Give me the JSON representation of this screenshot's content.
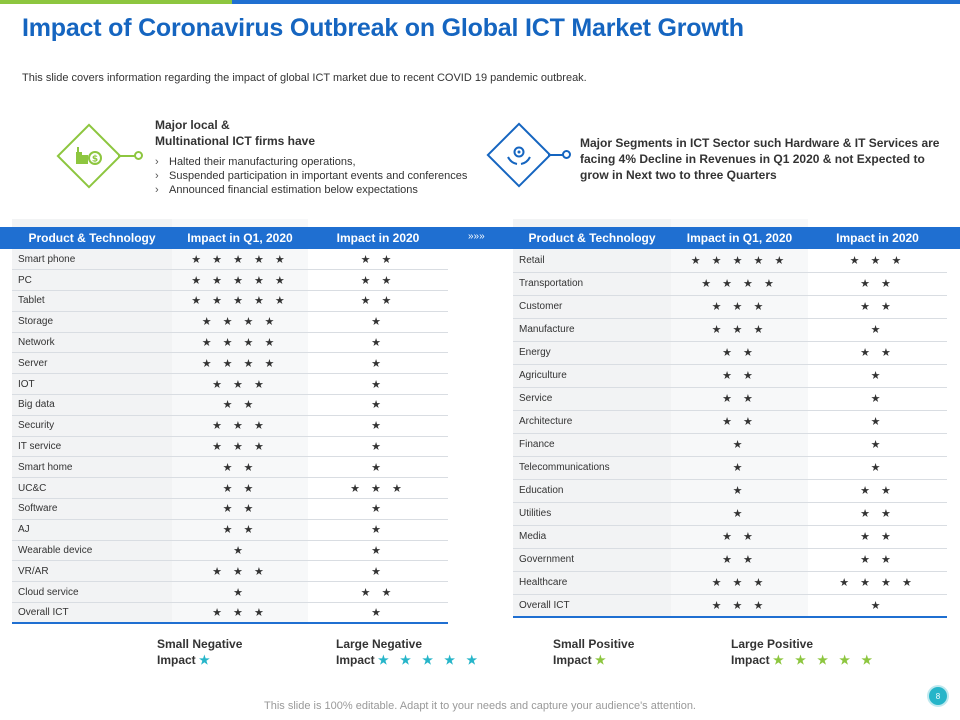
{
  "title": "Impact of Coronavirus Outbreak on Global ICT Market Growth",
  "subtitle": "This slide covers information regarding the impact of global ICT market due to recent COVID 19 pandemic outbreak.",
  "info_left": {
    "heading_line1": "Major local &",
    "heading_line2": "Multinational ICT firms have",
    "bullets": [
      "Halted their manufacturing operations,",
      "Suspended participation in important events and conferences",
      "Announced financial estimation below expectations"
    ]
  },
  "info_right": {
    "text": "Major Segments  in ICT Sector such Hardware  & IT Services  are facing 4% Decline in Revenues  in Q1 2020 & not Expected to grow in Next  two to three Quarters"
  },
  "chevron": "»»»",
  "colors": {
    "blue": "#1f6fd1",
    "green": "#8dc63f",
    "teal": "#26b5c9",
    "title": "#1565c0"
  },
  "left_table": {
    "headers": [
      "Product & Technology",
      "Impact in Q1, 2020",
      "Impact in 2020"
    ],
    "rows": [
      {
        "name": "Smart phone",
        "q1": {
          "stars": "★ ★ ★ ★ ★",
          "type": "negative"
        },
        "y2020": {
          "stars": "★ ★",
          "type": "negative"
        }
      },
      {
        "name": "PC",
        "q1": {
          "stars": "★ ★ ★ ★ ★",
          "type": "negative"
        },
        "y2020": {
          "stars": "★ ★",
          "type": "negative"
        }
      },
      {
        "name": "Tablet",
        "q1": {
          "stars": "★ ★ ★ ★ ★",
          "type": "negative"
        },
        "y2020": {
          "stars": "★ ★",
          "type": "negative"
        }
      },
      {
        "name": "Storage",
        "q1": {
          "stars": "★ ★ ★ ★",
          "type": "negative"
        },
        "y2020": {
          "stars": "★",
          "type": "negative"
        }
      },
      {
        "name": "Network",
        "q1": {
          "stars": "★ ★ ★ ★",
          "type": "negative"
        },
        "y2020": {
          "stars": "★",
          "type": "negative"
        }
      },
      {
        "name": "Server",
        "q1": {
          "stars": "★ ★ ★ ★",
          "type": "negative"
        },
        "y2020": {
          "stars": "★",
          "type": "negative"
        }
      },
      {
        "name": "IOT",
        "q1": {
          "stars": "★ ★ ★",
          "type": "negative"
        },
        "y2020": {
          "stars": "★",
          "type": "negative"
        }
      },
      {
        "name": "Big data",
        "q1": {
          "stars": "★ ★",
          "type": "negative"
        },
        "y2020": {
          "stars": "★",
          "type": "negative"
        }
      },
      {
        "name": "Security",
        "q1": {
          "stars": "★ ★ ★",
          "type": "negative"
        },
        "y2020": {
          "stars": "★",
          "type": "negative"
        }
      },
      {
        "name": "IT service",
        "q1": {
          "stars": "★ ★ ★",
          "type": "negative"
        },
        "y2020": {
          "stars": "★",
          "type": "negative"
        }
      },
      {
        "name": "Smart home",
        "q1": {
          "stars": "★ ★",
          "type": "negative"
        },
        "y2020": {
          "stars": "★",
          "type": "negative"
        }
      },
      {
        "name": "UC&C",
        "q1": {
          "stars": "★ ★",
          "type": "positive"
        },
        "y2020": {
          "stars": "★ ★ ★",
          "type": "positive"
        }
      },
      {
        "name": "Software",
        "q1": {
          "stars": "★ ★",
          "type": "negative"
        },
        "y2020": {
          "stars": "★",
          "type": "negative"
        }
      },
      {
        "name": "AJ",
        "q1": {
          "stars": "★ ★",
          "type": "negative"
        },
        "y2020": {
          "stars": "★",
          "type": "negative"
        }
      },
      {
        "name": "Wearable device",
        "q1": {
          "stars": "★",
          "type": "negative"
        },
        "y2020": {
          "stars": "★",
          "type": "negative"
        }
      },
      {
        "name": "VR/AR",
        "q1": {
          "stars": "★ ★ ★",
          "type": "negative"
        },
        "y2020": {
          "stars": "★",
          "type": "negative"
        }
      },
      {
        "name": "Cloud service",
        "q1": {
          "stars": "★",
          "type": "positive"
        },
        "y2020": {
          "stars": "★ ★",
          "type": "positive"
        }
      },
      {
        "name": "Overall ICT",
        "q1": {
          "stars": "★ ★ ★",
          "type": "negative"
        },
        "y2020": {
          "stars": "★",
          "type": "negative"
        }
      }
    ]
  },
  "right_table": {
    "headers": [
      "Product & Technology",
      "Impact in Q1, 2020",
      "Impact in 2020"
    ],
    "rows": [
      {
        "name": "Retail",
        "q1": {
          "stars": "★ ★ ★ ★ ★",
          "type": "negative"
        },
        "y2020": {
          "stars": "★ ★ ★",
          "type": "negative"
        }
      },
      {
        "name": "Transportation",
        "q1": {
          "stars": "★ ★ ★ ★",
          "type": "negative"
        },
        "y2020": {
          "stars": "★ ★",
          "type": "negative"
        }
      },
      {
        "name": "Customer",
        "q1": {
          "stars": "★ ★ ★",
          "type": "negative"
        },
        "y2020": {
          "stars": "★ ★",
          "type": "negative"
        }
      },
      {
        "name": "Manufacture",
        "q1": {
          "stars": "★ ★ ★",
          "type": "negative"
        },
        "y2020": {
          "stars": "★",
          "type": "negative"
        }
      },
      {
        "name": "Energy",
        "q1": {
          "stars": "★ ★",
          "type": "negative"
        },
        "y2020": {
          "stars": "★ ★",
          "type": "negative"
        }
      },
      {
        "name": "Agriculture",
        "q1": {
          "stars": "★ ★",
          "type": "negative"
        },
        "y2020": {
          "stars": "★",
          "type": "negative"
        }
      },
      {
        "name": "Service",
        "q1": {
          "stars": "★ ★",
          "type": "negative"
        },
        "y2020": {
          "stars": "★",
          "type": "negative"
        }
      },
      {
        "name": "Architecture",
        "q1": {
          "stars": "★ ★",
          "type": "negative"
        },
        "y2020": {
          "stars": "★",
          "type": "positive"
        }
      },
      {
        "name": "Finance",
        "q1": {
          "stars": "★",
          "type": "negative"
        },
        "y2020": {
          "stars": "★",
          "type": "positive"
        }
      },
      {
        "name": "Telecommunications",
        "q1": {
          "stars": "★",
          "type": "positive"
        },
        "y2020": {
          "stars": "★",
          "type": "positive"
        }
      },
      {
        "name": "Education",
        "q1": {
          "stars": "★",
          "type": "positive"
        },
        "y2020": {
          "stars": "★ ★",
          "type": "positive"
        }
      },
      {
        "name": "Utilities",
        "q1": {
          "stars": "★",
          "type": "positive"
        },
        "y2020": {
          "stars": "★ ★",
          "type": "positive"
        }
      },
      {
        "name": "Media",
        "q1": {
          "stars": "★ ★",
          "type": "positive"
        },
        "y2020": {
          "stars": "★ ★",
          "type": "positive"
        }
      },
      {
        "name": "Government",
        "q1": {
          "stars": "★ ★",
          "type": "positive"
        },
        "y2020": {
          "stars": "★ ★",
          "type": "positive"
        }
      },
      {
        "name": "Healthcare",
        "q1": {
          "stars": "★ ★ ★",
          "type": "positive"
        },
        "y2020": {
          "stars": "★ ★ ★ ★",
          "type": "positive"
        }
      },
      {
        "name": "Overall ICT",
        "q1": {
          "stars": "★ ★ ★",
          "type": "negative"
        },
        "y2020": {
          "stars": "★",
          "type": "negative"
        }
      }
    ]
  },
  "legend": [
    {
      "line1": "Small Negative",
      "line2": "Impact",
      "stars": "★",
      "type": "negative"
    },
    {
      "line1": "Large Negative",
      "line2": "Impact",
      "stars": "★ ★ ★ ★ ★",
      "type": "negative"
    },
    {
      "line1": "Small Positive",
      "line2": "Impact",
      "stars": "★",
      "type": "positive"
    },
    {
      "line1": "Large Positive",
      "line2": "Impact",
      "stars": "★ ★ ★ ★ ★",
      "type": "positive"
    }
  ],
  "footer": "This slide is 100% editable. Adapt it to your needs and capture your audience's attention.",
  "page_number": "8"
}
